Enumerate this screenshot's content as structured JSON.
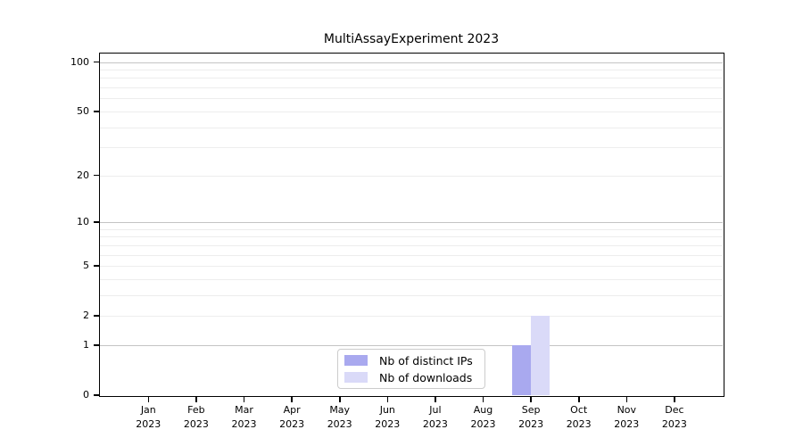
{
  "title": "MultiAssayExperiment 2023",
  "chart_data": {
    "type": "bar",
    "title": "MultiAssayExperiment 2023",
    "xlabel": "",
    "ylabel": "",
    "year": "2023",
    "months": [
      "Jan",
      "Feb",
      "Mar",
      "Apr",
      "May",
      "Jun",
      "Jul",
      "Aug",
      "Sep",
      "Oct",
      "Nov",
      "Dec"
    ],
    "categories": [
      "Jan 2023",
      "Feb 2023",
      "Mar 2023",
      "Apr 2023",
      "May 2023",
      "Jun 2023",
      "Jul 2023",
      "Aug 2023",
      "Sep 2023",
      "Oct 2023",
      "Nov 2023",
      "Dec 2023"
    ],
    "series": [
      {
        "name": "Nb of distinct IPs",
        "color": "#a9a9ef",
        "values": [
          0,
          0,
          0,
          0,
          0,
          0,
          0,
          0,
          1,
          0,
          0,
          0
        ]
      },
      {
        "name": "Nb of downloads",
        "color": "#dadaf8",
        "values": [
          0,
          0,
          0,
          0,
          0,
          0,
          0,
          0,
          2,
          0,
          0,
          0
        ]
      }
    ],
    "yscale": "log10(value+1)",
    "y_ticks": [
      0,
      1,
      2,
      5,
      10,
      20,
      50,
      100
    ],
    "ylim": [
      0,
      115
    ],
    "grid": "horizontal",
    "grid_decade_values": [
      1,
      10,
      100
    ],
    "grid_minor_values": [
      2,
      3,
      4,
      5,
      6,
      7,
      8,
      9,
      20,
      30,
      40,
      50,
      60,
      70,
      80,
      90
    ],
    "legend_position": "inside-bottom-center"
  },
  "colors": {
    "background": "#ffffff",
    "axis": "#000000",
    "text": "#000000",
    "grid_decade": "#c4c4c4",
    "grid_minor": "#ededed",
    "legend_border": "#cccccc",
    "legend_background": "#ffffff"
  }
}
